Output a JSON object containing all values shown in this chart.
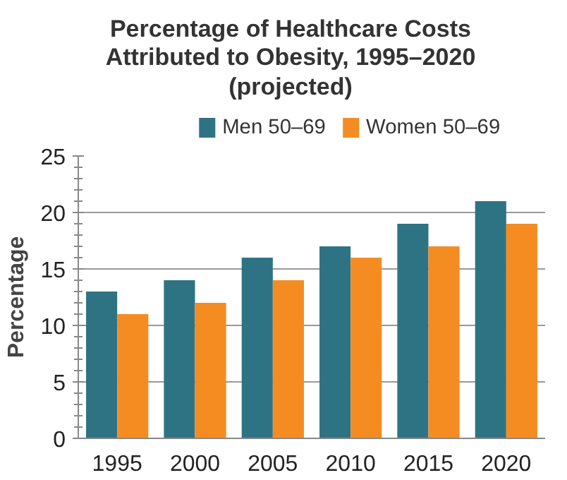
{
  "chart_data": {
    "type": "bar",
    "title": "Percentage of Healthcare Costs Attributed to Obesity, 1995–2020 (projected)",
    "ylabel": "Percentage",
    "categories": [
      "1995",
      "2000",
      "2005",
      "2010",
      "2015",
      "2020"
    ],
    "series": [
      {
        "name": "Men 50–69",
        "color": "#2e7384",
        "values": [
          13,
          14,
          16,
          17,
          19,
          21
        ]
      },
      {
        "name": "Women 50–69",
        "color": "#f58c22",
        "values": [
          11,
          12,
          14,
          16,
          17,
          19
        ]
      }
    ],
    "ylim": [
      0,
      25
    ],
    "yticks": [
      0,
      5,
      10,
      15,
      20,
      25
    ],
    "grid": "y",
    "legend": "top"
  }
}
